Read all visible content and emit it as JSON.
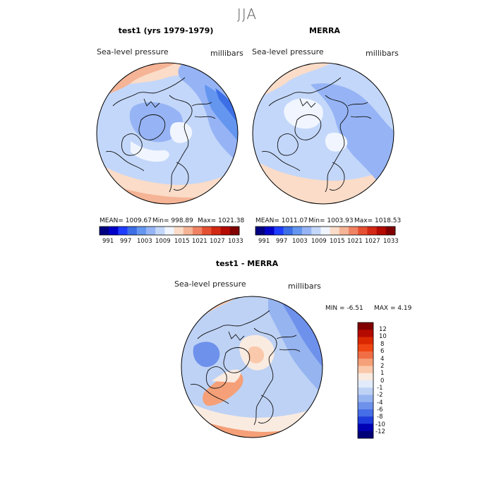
{
  "figure": {
    "season": "JJA"
  },
  "panels": [
    {
      "title": "test1 (yrs 1979-1979)",
      "variable": "Sea-level pressure",
      "units": "millibars",
      "mean": "MEAN= 1009.67",
      "min": "Min= 998.89",
      "max": "Max= 1021.38"
    },
    {
      "title": "MERRA",
      "variable": "Sea-level pressure",
      "units": "millibars",
      "mean": "MEAN= 1011.07",
      "min": "Min= 1003.93",
      "max": "Max= 1018.53"
    },
    {
      "title": "test1 - MERRA",
      "variable": "Sea-level pressure",
      "units": "millibars",
      "min": "MIN =   -6.51",
      "max": "MAX =    4.19"
    }
  ],
  "colorbar_top": {
    "labels": [
      "991",
      "997",
      "1003",
      "1009",
      "1015",
      "1021",
      "1027",
      "1033"
    ],
    "colors": [
      "#000080",
      "#0000c8",
      "#1e3cff",
      "#3c6ee6",
      "#6496f0",
      "#96b4f5",
      "#c3d7fa",
      "#f0f5ff",
      "#fadcc8",
      "#f5b496",
      "#f08264",
      "#e65032",
      "#d22814",
      "#b40a00",
      "#800000"
    ]
  },
  "colorbar_diff": {
    "labels": [
      "12",
      "10",
      "8",
      "6",
      "4",
      "2",
      "1",
      "0",
      "-1",
      "-2",
      "-4",
      "-6",
      "-8",
      "-10",
      "-12"
    ],
    "colors": [
      "#800000",
      "#b40a00",
      "#dc2800",
      "#f04614",
      "#f06e46",
      "#f5a078",
      "#fac8aa",
      "#faebe1",
      "#e1ebfa",
      "#bed2f5",
      "#96b4f0",
      "#6e91eb",
      "#466ee6",
      "#1e3cdc",
      "#0000b4",
      "#000078"
    ]
  },
  "chart_data": [
    {
      "type": "heatmap",
      "title": "test1 (yrs 1979-1979)",
      "subtitle": "Sea-level pressure",
      "units": "millibars",
      "projection": "north polar stereographic",
      "stats": {
        "mean": 1009.67,
        "min": 998.89,
        "max": 1021.38
      },
      "levels": [
        991,
        994,
        997,
        1000,
        1003,
        1006,
        1009,
        1012,
        1015,
        1018,
        1021,
        1024,
        1027,
        1030,
        1033
      ]
    },
    {
      "type": "heatmap",
      "title": "MERRA",
      "subtitle": "Sea-level pressure",
      "units": "millibars",
      "projection": "north polar stereographic",
      "stats": {
        "mean": 1011.07,
        "min": 1003.93,
        "max": 1018.53
      },
      "levels": [
        991,
        994,
        997,
        1000,
        1003,
        1006,
        1009,
        1012,
        1015,
        1018,
        1021,
        1024,
        1027,
        1030,
        1033
      ]
    },
    {
      "type": "heatmap",
      "title": "test1 - MERRA",
      "subtitle": "Sea-level pressure",
      "units": "millibars",
      "projection": "north polar stereographic",
      "stats": {
        "min": -6.51,
        "max": 4.19
      },
      "levels": [
        -12,
        -10,
        -8,
        -6,
        -4,
        -2,
        -1,
        0,
        1,
        2,
        4,
        6,
        8,
        10,
        12
      ]
    }
  ]
}
